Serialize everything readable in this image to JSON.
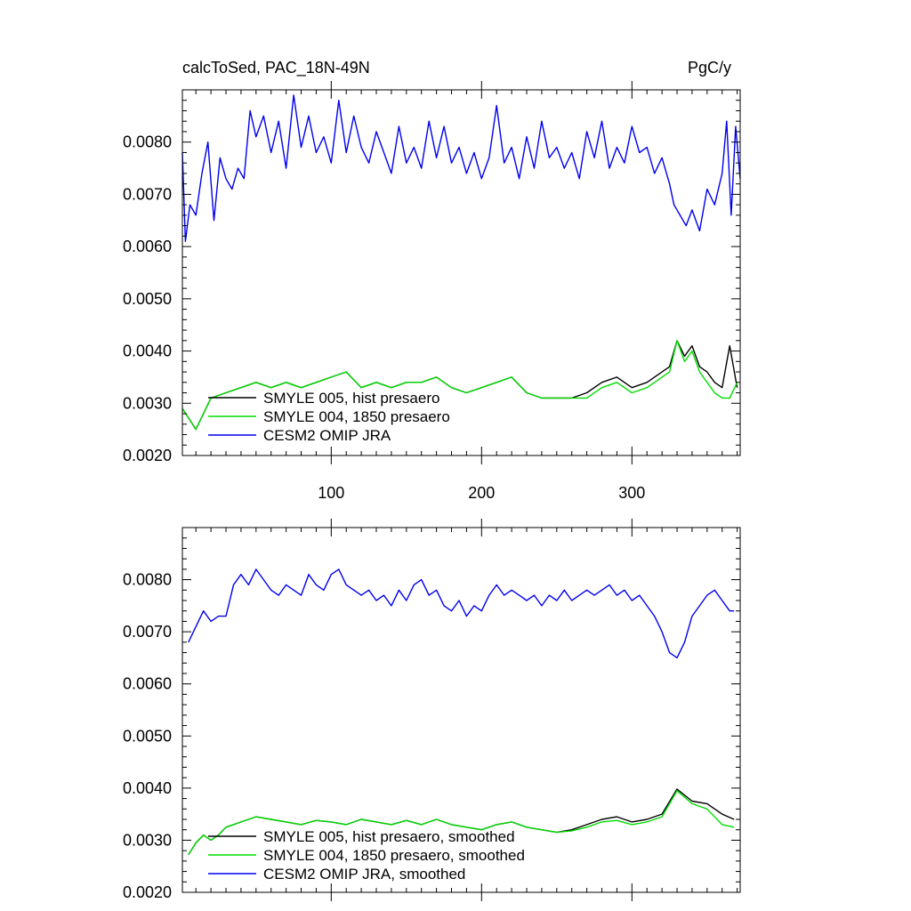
{
  "chart_data": [
    {
      "type": "line",
      "title": "calcToSed, PAC_18N-49N",
      "units": "PgC/y",
      "x_ticks": [
        100,
        200,
        300
      ],
      "xlim": [
        1,
        372
      ],
      "y_ticks": [
        "0.0020",
        "0.0030",
        "0.0040",
        "0.0050",
        "0.0060",
        "0.0070",
        "0.0080"
      ],
      "ylim": [
        0.002,
        0.009
      ],
      "legend_position": "bottom-left",
      "series": [
        {
          "name": "SMYLE 005, hist presaero",
          "color": "#000000",
          "x": [
            1,
            10,
            20,
            30,
            40,
            50,
            60,
            70,
            80,
            90,
            100,
            110,
            120,
            130,
            140,
            150,
            160,
            170,
            180,
            190,
            200,
            210,
            220,
            230,
            240,
            250,
            260,
            270,
            280,
            290,
            300,
            310,
            320,
            325,
            330,
            335,
            340,
            345,
            350,
            355,
            360,
            365,
            370
          ],
          "y": [
            0.0029,
            0.0025,
            0.0031,
            0.0032,
            0.0033,
            0.0034,
            0.0033,
            0.0034,
            0.0033,
            0.0034,
            0.0035,
            0.0036,
            0.0033,
            0.0034,
            0.0033,
            0.0034,
            0.0034,
            0.0035,
            0.0033,
            0.0032,
            0.0033,
            0.0034,
            0.0035,
            0.0032,
            0.0031,
            0.0031,
            0.0031,
            0.0032,
            0.0034,
            0.0035,
            0.0033,
            0.0034,
            0.0036,
            0.0037,
            0.0042,
            0.0039,
            0.0041,
            0.0037,
            0.0036,
            0.0034,
            0.0033,
            0.0041,
            0.0033
          ]
        },
        {
          "name": "SMYLE 004, 1850 presaero",
          "color": "#00dd00",
          "x": [
            1,
            10,
            20,
            30,
            40,
            50,
            60,
            70,
            80,
            90,
            100,
            110,
            120,
            130,
            140,
            150,
            160,
            170,
            180,
            190,
            200,
            210,
            220,
            230,
            240,
            250,
            260,
            270,
            280,
            290,
            300,
            310,
            320,
            325,
            330,
            335,
            340,
            345,
            350,
            355,
            360,
            365,
            370
          ],
          "y": [
            0.0029,
            0.0025,
            0.0031,
            0.0032,
            0.0033,
            0.0034,
            0.0033,
            0.0034,
            0.0033,
            0.0034,
            0.0035,
            0.0036,
            0.0033,
            0.0034,
            0.0033,
            0.0034,
            0.0034,
            0.0035,
            0.0033,
            0.0032,
            0.0033,
            0.0034,
            0.0035,
            0.0032,
            0.0031,
            0.0031,
            0.0031,
            0.0031,
            0.0033,
            0.0034,
            0.0032,
            0.0033,
            0.0035,
            0.0036,
            0.0042,
            0.0038,
            0.004,
            0.0036,
            0.0034,
            0.0032,
            0.0031,
            0.0031,
            0.0034
          ]
        },
        {
          "name": "CESM2 OMIP JRA",
          "color": "#0000ee",
          "x": [
            1,
            3,
            6,
            10,
            14,
            18,
            22,
            26,
            30,
            34,
            38,
            42,
            46,
            50,
            55,
            60,
            65,
            70,
            75,
            80,
            85,
            90,
            95,
            100,
            105,
            110,
            115,
            120,
            125,
            130,
            135,
            140,
            145,
            150,
            155,
            160,
            165,
            170,
            175,
            180,
            185,
            190,
            195,
            200,
            205,
            210,
            215,
            220,
            225,
            230,
            235,
            240,
            245,
            250,
            255,
            260,
            265,
            270,
            275,
            280,
            285,
            290,
            295,
            300,
            305,
            310,
            315,
            320,
            325,
            328,
            332,
            336,
            340,
            345,
            350,
            355,
            360,
            363,
            366,
            369,
            372
          ],
          "y": [
            0.0078,
            0.0061,
            0.0068,
            0.0066,
            0.0074,
            0.008,
            0.0065,
            0.0077,
            0.0073,
            0.0071,
            0.0075,
            0.0073,
            0.0086,
            0.0081,
            0.0085,
            0.0078,
            0.0084,
            0.0075,
            0.0089,
            0.0079,
            0.0085,
            0.0078,
            0.0081,
            0.0076,
            0.0088,
            0.0078,
            0.0085,
            0.0079,
            0.0076,
            0.0082,
            0.0078,
            0.0074,
            0.0083,
            0.0076,
            0.0079,
            0.0075,
            0.0084,
            0.0077,
            0.0083,
            0.0076,
            0.0079,
            0.0074,
            0.0078,
            0.0073,
            0.0077,
            0.0087,
            0.0076,
            0.0079,
            0.0073,
            0.0081,
            0.0075,
            0.0084,
            0.0077,
            0.0079,
            0.0075,
            0.0078,
            0.0073,
            0.0082,
            0.0077,
            0.0084,
            0.0075,
            0.0079,
            0.0076,
            0.0083,
            0.0078,
            0.0079,
            0.0074,
            0.0077,
            0.0072,
            0.0068,
            0.0066,
            0.0064,
            0.0067,
            0.0063,
            0.0071,
            0.0068,
            0.0074,
            0.0084,
            0.0066,
            0.0083,
            0.0073
          ]
        }
      ]
    },
    {
      "type": "line",
      "title": "",
      "x_ticks": [
        100,
        200,
        300
      ],
      "xlim": [
        1,
        372
      ],
      "y_ticks": [
        "0.0020",
        "0.0030",
        "0.0040",
        "0.0050",
        "0.0060",
        "0.0070",
        "0.0080"
      ],
      "ylim": [
        0.002,
        0.009
      ],
      "legend_position": "bottom-left",
      "series": [
        {
          "name": "SMYLE 005, hist presaero, smoothed",
          "color": "#000000",
          "x": [
            5,
            10,
            15,
            20,
            25,
            30,
            35,
            40,
            45,
            50,
            60,
            70,
            80,
            90,
            100,
            110,
            120,
            130,
            140,
            150,
            160,
            170,
            180,
            190,
            200,
            210,
            220,
            230,
            240,
            250,
            260,
            270,
            280,
            290,
            300,
            310,
            320,
            330,
            340,
            350,
            360,
            368
          ],
          "y": [
            0.00272,
            0.00295,
            0.0031,
            0.003,
            0.0031,
            0.00325,
            0.0033,
            0.00335,
            0.0034,
            0.00345,
            0.0034,
            0.00335,
            0.0033,
            0.00338,
            0.00335,
            0.0033,
            0.0034,
            0.00335,
            0.0033,
            0.00338,
            0.0033,
            0.0034,
            0.0033,
            0.00325,
            0.0032,
            0.0033,
            0.00335,
            0.00325,
            0.0032,
            0.00315,
            0.0032,
            0.0033,
            0.0034,
            0.00345,
            0.00335,
            0.0034,
            0.0035,
            0.00398,
            0.00375,
            0.0037,
            0.0035,
            0.0034
          ]
        },
        {
          "name": "SMYLE 004, 1850 presaero, smoothed",
          "color": "#00dd00",
          "x": [
            5,
            10,
            15,
            20,
            25,
            30,
            35,
            40,
            45,
            50,
            60,
            70,
            80,
            90,
            100,
            110,
            120,
            130,
            140,
            150,
            160,
            170,
            180,
            190,
            200,
            210,
            220,
            230,
            240,
            250,
            260,
            270,
            280,
            290,
            300,
            310,
            320,
            330,
            340,
            350,
            360,
            368
          ],
          "y": [
            0.00272,
            0.00295,
            0.0031,
            0.003,
            0.0031,
            0.00325,
            0.0033,
            0.00335,
            0.0034,
            0.00345,
            0.0034,
            0.00335,
            0.0033,
            0.00338,
            0.00335,
            0.0033,
            0.0034,
            0.00335,
            0.0033,
            0.00338,
            0.0033,
            0.0034,
            0.0033,
            0.00325,
            0.0032,
            0.0033,
            0.00335,
            0.00325,
            0.0032,
            0.00315,
            0.00318,
            0.00325,
            0.00335,
            0.00338,
            0.0033,
            0.00335,
            0.00345,
            0.00395,
            0.0037,
            0.0036,
            0.0033,
            0.00325
          ]
        },
        {
          "name": "CESM2 OMIP JRA, smoothed",
          "color": "#0000ee",
          "x": [
            5,
            10,
            15,
            20,
            25,
            30,
            35,
            40,
            45,
            50,
            55,
            60,
            65,
            70,
            75,
            80,
            85,
            90,
            95,
            100,
            105,
            110,
            115,
            120,
            125,
            130,
            135,
            140,
            145,
            150,
            155,
            160,
            165,
            170,
            175,
            180,
            185,
            190,
            195,
            200,
            205,
            210,
            215,
            220,
            225,
            230,
            235,
            240,
            245,
            250,
            255,
            260,
            265,
            270,
            275,
            280,
            285,
            290,
            295,
            300,
            305,
            310,
            315,
            320,
            325,
            330,
            335,
            340,
            345,
            350,
            355,
            360,
            365,
            368
          ],
          "y": [
            0.0068,
            0.0071,
            0.0074,
            0.0072,
            0.0073,
            0.0073,
            0.0079,
            0.0081,
            0.0079,
            0.0082,
            0.008,
            0.0078,
            0.0077,
            0.0079,
            0.0078,
            0.0077,
            0.0081,
            0.0079,
            0.0078,
            0.0081,
            0.0082,
            0.0079,
            0.0078,
            0.0077,
            0.0078,
            0.0076,
            0.0077,
            0.0075,
            0.0078,
            0.0076,
            0.0079,
            0.008,
            0.0077,
            0.0078,
            0.0075,
            0.0074,
            0.0076,
            0.0073,
            0.0075,
            0.0074,
            0.0077,
            0.0079,
            0.0077,
            0.0078,
            0.0077,
            0.0076,
            0.0077,
            0.0075,
            0.0077,
            0.0076,
            0.0078,
            0.0076,
            0.0077,
            0.0078,
            0.0077,
            0.0078,
            0.0079,
            0.0077,
            0.0078,
            0.0076,
            0.0077,
            0.0075,
            0.0073,
            0.007,
            0.0066,
            0.0065,
            0.0068,
            0.0073,
            0.0075,
            0.0077,
            0.0078,
            0.0076,
            0.0074,
            0.0074
          ]
        }
      ]
    }
  ]
}
